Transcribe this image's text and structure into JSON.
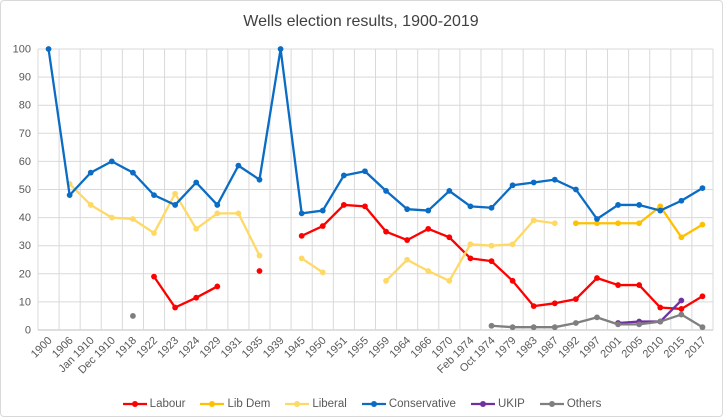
{
  "chart_data": {
    "type": "line",
    "title": "Wells election results, 1900-2019",
    "categories": [
      "1900",
      "1906",
      "Jan 1910",
      "Dec 1910",
      "1918",
      "1922",
      "1923",
      "1924",
      "1929",
      "1931",
      "1935",
      "1939",
      "1945",
      "1950",
      "1951",
      "1955",
      "1959",
      "1964",
      "1966",
      "1970",
      "Feb 1974",
      "Oct 1974",
      "1979",
      "1983",
      "1987",
      "1992",
      "1997",
      "2001",
      "2005",
      "2010",
      "2015",
      "2017"
    ],
    "series": [
      {
        "name": "Labour",
        "color": "#fe0000",
        "values": [
          null,
          null,
          null,
          null,
          null,
          19,
          8,
          11.5,
          15.5,
          null,
          21,
          null,
          33.5,
          37,
          44.5,
          44,
          35,
          32,
          36,
          33,
          25.5,
          24.5,
          17.5,
          8.5,
          9.5,
          11,
          18.5,
          16,
          16,
          8,
          7.5,
          12
        ]
      },
      {
        "name": "Lib Dem",
        "color": "#ffc000",
        "values": [
          null,
          null,
          null,
          null,
          null,
          null,
          null,
          null,
          null,
          null,
          null,
          null,
          null,
          null,
          null,
          null,
          null,
          null,
          null,
          null,
          null,
          null,
          null,
          null,
          null,
          38,
          38,
          38,
          38,
          44,
          33,
          37.5
        ]
      },
      {
        "name": "Liberal",
        "color": "#ffd966",
        "values": [
          null,
          52,
          44.5,
          40,
          39.5,
          34.5,
          48.5,
          36,
          41.5,
          41.5,
          26.5,
          null,
          25.5,
          20.5,
          null,
          null,
          17.5,
          25,
          21,
          17.5,
          30.5,
          30,
          30.5,
          39,
          38,
          null,
          null,
          null,
          null,
          null,
          null,
          null
        ]
      },
      {
        "name": "Conservative",
        "color": "#0a6cc4",
        "values": [
          100,
          48,
          56,
          60,
          56,
          48,
          44.5,
          52.5,
          44.5,
          58.5,
          53.5,
          100,
          41.5,
          42.5,
          55,
          56.5,
          49.5,
          43,
          42.5,
          49.5,
          44,
          43.5,
          51.5,
          52.5,
          53.5,
          50,
          39.5,
          44.5,
          44.5,
          42.5,
          46,
          50.5
        ]
      },
      {
        "name": "UKIP",
        "color": "#7030a0",
        "values": [
          null,
          null,
          null,
          null,
          null,
          null,
          null,
          null,
          null,
          null,
          null,
          null,
          null,
          null,
          null,
          null,
          null,
          null,
          null,
          null,
          null,
          null,
          null,
          null,
          null,
          null,
          null,
          2.5,
          3,
          3,
          10.5,
          null
        ]
      },
      {
        "name": "Others",
        "color": "#7f7f7f",
        "values": [
          null,
          null,
          null,
          null,
          5,
          null,
          null,
          null,
          null,
          null,
          null,
          null,
          null,
          null,
          null,
          null,
          null,
          null,
          null,
          null,
          null,
          1.5,
          1,
          1,
          1,
          2.5,
          4.5,
          2,
          2,
          3,
          5.5,
          1
        ]
      }
    ],
    "ylim": [
      0,
      100
    ],
    "ytick_step": 10,
    "ytick_labels": [
      "0",
      "10",
      "20",
      "30",
      "40",
      "50",
      "60",
      "70",
      "80",
      "90",
      "100"
    ],
    "grid": true,
    "legend_position": "bottom",
    "gridline_color": "#d9d9d9",
    "axisline_color": "#bfbfbf",
    "text_color": "#595959",
    "title_color": "#404040"
  }
}
